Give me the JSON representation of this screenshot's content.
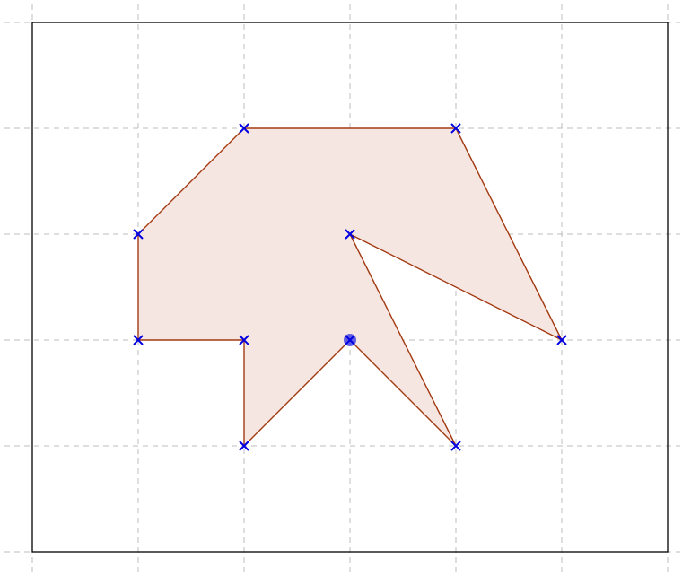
{
  "grid": {
    "columns": 6,
    "rows": 5
  },
  "polygon": {
    "vertices": [
      [
        2,
        4
      ],
      [
        4,
        4
      ],
      [
        5,
        2
      ],
      [
        3,
        3
      ],
      [
        4,
        1
      ],
      [
        3,
        2
      ],
      [
        2,
        1
      ],
      [
        2,
        2
      ],
      [
        1,
        2
      ],
      [
        1,
        3
      ]
    ],
    "highlighted_vertex": 5,
    "stroke": "#a33a12",
    "fill": "#f5e6e1",
    "marker_color": "#0000e0"
  }
}
